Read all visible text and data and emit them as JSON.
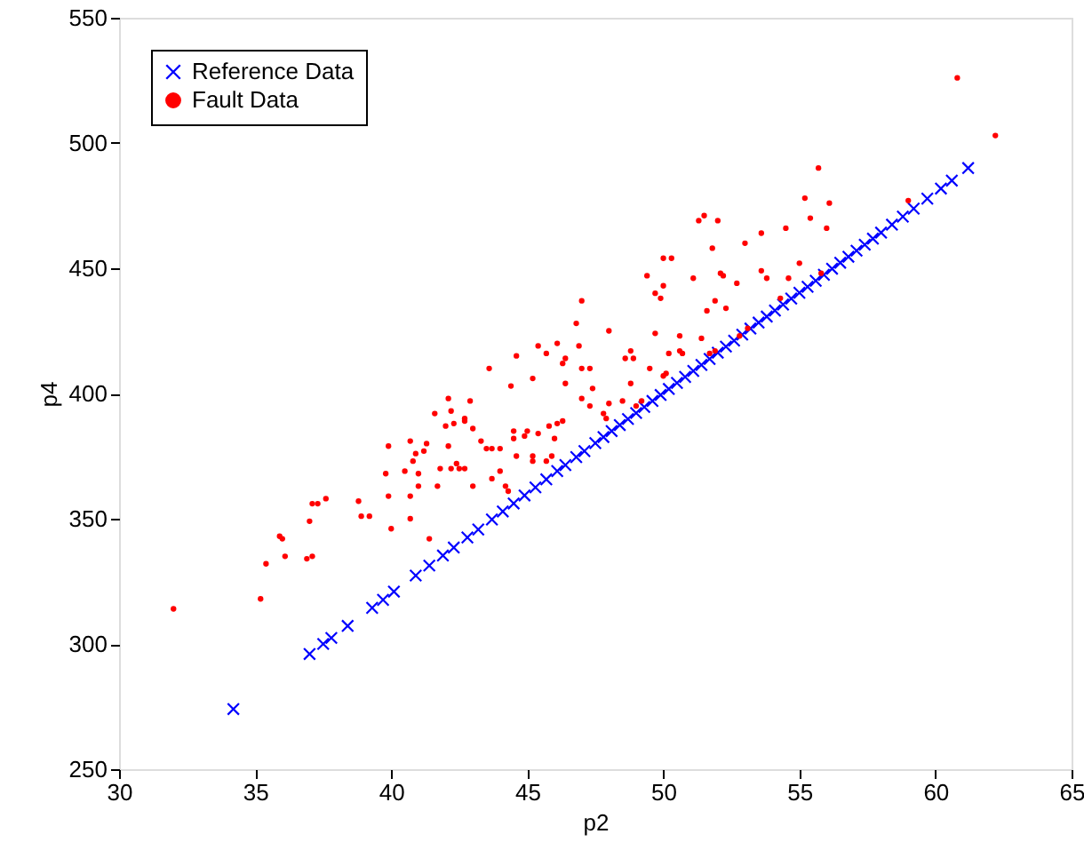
{
  "chart_data": {
    "type": "scatter",
    "xlabel": "p2",
    "ylabel": "p4",
    "xlim": [
      30,
      65
    ],
    "xticks": [
      30,
      35,
      40,
      45,
      50,
      55,
      60,
      65
    ],
    "ylim": [
      250,
      550
    ],
    "yticks": [
      250,
      300,
      350,
      400,
      450,
      500,
      550
    ],
    "grid": false,
    "legend": "top left",
    "series": [
      {
        "name": "Reference Data",
        "color": "#0000ff",
        "marker": "cross",
        "x": [
          34.2,
          37.0,
          37.5,
          37.8,
          38.4,
          39.3,
          39.7,
          40.1,
          40.9,
          41.4,
          41.9,
          42.3,
          42.8,
          43.2,
          43.7,
          44.1,
          44.5,
          44.9,
          45.3,
          45.7,
          46.1,
          46.4,
          46.8,
          47.1,
          47.5,
          47.8,
          48.1,
          48.4,
          48.7,
          49.0,
          49.3,
          49.6,
          49.9,
          50.2,
          50.5,
          50.8,
          51.1,
          51.4,
          51.7,
          52.0,
          52.3,
          52.6,
          52.9,
          53.2,
          53.5,
          53.8,
          54.1,
          54.4,
          54.7,
          55.0,
          55.3,
          55.6,
          55.9,
          56.2,
          56.5,
          56.8,
          57.1,
          57.4,
          57.7,
          58.0,
          58.4,
          58.8,
          59.2,
          59.7,
          60.2,
          60.6,
          61.2
        ],
        "values": [
          274,
          296,
          300,
          302.4,
          307.2,
          314.4,
          317.6,
          320.9,
          327.3,
          331.3,
          335.3,
          338.5,
          342.5,
          345.7,
          349.7,
          352.9,
          356.1,
          359.3,
          362.5,
          365.7,
          369.0,
          371.4,
          374.6,
          377.0,
          380.2,
          382.6,
          385.0,
          387.4,
          389.8,
          392.2,
          394.6,
          397.0,
          399.4,
          401.8,
          404.2,
          406.6,
          409.0,
          411.4,
          413.8,
          416.3,
          418.7,
          421.1,
          423.5,
          425.9,
          428.3,
          430.7,
          433.1,
          435.5,
          437.9,
          440.2,
          442.6,
          445.0,
          447.4,
          449.8,
          452.2,
          454.6,
          457.0,
          459.4,
          461.8,
          464.2,
          467.4,
          470.6,
          473.8,
          477.8,
          481.8,
          485.0,
          490
        ]
      },
      {
        "name": "Fault Data",
        "color": "#ff0000",
        "marker": "circle",
        "x": [
          32.0,
          35.2,
          35.4,
          36.1,
          35.9,
          36.0,
          36.9,
          37.1,
          37.0,
          37.1,
          37.3,
          37.6,
          38.8,
          38.9,
          39.2,
          40.0,
          40.7,
          41.4,
          39.8,
          39.9,
          39.9,
          40.5,
          40.7,
          40.7,
          40.9,
          40.8,
          41.0,
          41.0,
          41.2,
          41.3,
          41.6,
          41.7,
          42.0,
          42.1,
          42.2,
          42.1,
          41.8,
          42.2,
          42.4,
          42.5,
          42.7,
          42.3,
          42.7,
          42.7,
          42.9,
          43.0,
          43.0,
          43.3,
          43.5,
          43.7,
          44.0,
          43.6,
          43.7,
          44.0,
          44.2,
          44.3,
          44.4,
          44.5,
          44.5,
          44.6,
          44.6,
          44.9,
          45.0,
          45.2,
          45.2,
          45.2,
          45.4,
          45.4,
          45.7,
          45.7,
          45.8,
          45.9,
          46.0,
          46.1,
          46.1,
          46.3,
          46.3,
          46.4,
          46.4,
          46.8,
          46.9,
          47.0,
          47.0,
          47.3,
          47.4,
          47.0,
          47.3,
          47.8,
          47.9,
          48.0,
          48.0,
          48.5,
          48.6,
          48.8,
          48.8,
          48.9,
          49.0,
          49.2,
          49.4,
          49.5,
          49.7,
          49.7,
          49.9,
          50.0,
          50.0,
          50.0,
          50.1,
          50.2,
          50.3,
          50.6,
          50.6,
          50.7,
          51.1,
          51.4,
          51.6,
          51.7,
          51.8,
          51.9,
          51.9,
          52.1,
          52.2,
          52.3,
          52.7,
          52.8,
          53.0,
          53.1,
          53.6,
          53.6,
          53.8,
          54.3,
          54.6,
          55.0,
          51.3,
          51.5,
          52.0,
          60.8,
          62.2,
          55.7,
          55.2,
          56.1,
          55.4,
          54.5,
          56.0,
          59.0,
          55.8
        ],
        "values": [
          314,
          318,
          332,
          335,
          343,
          342,
          334,
          335,
          349,
          356,
          356,
          358,
          357,
          351,
          351,
          346,
          350,
          342,
          368,
          359,
          379,
          369,
          359,
          381,
          376,
          373,
          368,
          363,
          377,
          380,
          392,
          363,
          387,
          398,
          393,
          379,
          370,
          370,
          372,
          370,
          370,
          388,
          389,
          390,
          397,
          386,
          363,
          381,
          378,
          378,
          378,
          410,
          366,
          369,
          363,
          361,
          403,
          385,
          382,
          375,
          415,
          383,
          385,
          406,
          375,
          373,
          419,
          384,
          416,
          373,
          387,
          375,
          382,
          388,
          420,
          389,
          412,
          404,
          414,
          428,
          419,
          437,
          410,
          410,
          402,
          398,
          395,
          392,
          390,
          425,
          396,
          397,
          414,
          404,
          417,
          414,
          395,
          397,
          447,
          410,
          440,
          424,
          438,
          443,
          407,
          454,
          408,
          416,
          454,
          423,
          417,
          416,
          446,
          422,
          433,
          416,
          458,
          437,
          417,
          448,
          447,
          434,
          444,
          423,
          460,
          426,
          464,
          449,
          446,
          438,
          446,
          452,
          469,
          471,
          469,
          526,
          503,
          490,
          478,
          476,
          470,
          466,
          466,
          477,
          448
        ]
      }
    ]
  }
}
